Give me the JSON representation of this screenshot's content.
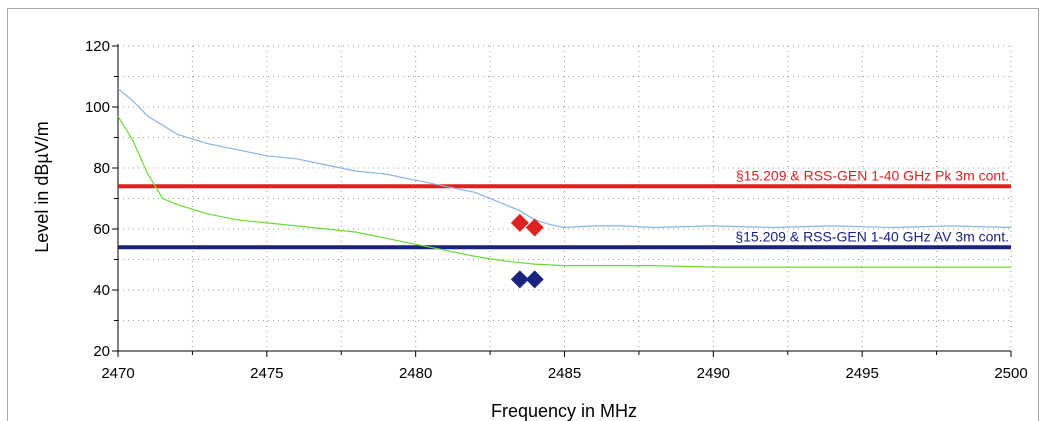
{
  "chart_data": {
    "type": "line",
    "xlabel": "Frequency in MHz",
    "ylabel": "Level in dBµV/m",
    "xlim": [
      2470,
      2500
    ],
    "ylim": [
      20,
      120
    ],
    "x_ticks": [
      2470,
      2475,
      2480,
      2485,
      2490,
      2495,
      2500
    ],
    "x_tick_labels": [
      "2470",
      "2475",
      "2480",
      "2485",
      "2490",
      "2495",
      "2500"
    ],
    "y_ticks": [
      20,
      40,
      60,
      80,
      100,
      120
    ],
    "y_tick_labels": [
      "20",
      "40",
      "60",
      "80",
      "100",
      "120"
    ],
    "grid": true,
    "series": [
      {
        "color": "#8ab4e6",
        "x": [
          2470.0,
          2470.5,
          2471.0,
          2471.5,
          2472.0,
          2473.0,
          2474.0,
          2475.0,
          2476.0,
          2477.0,
          2478.0,
          2479.0,
          2480.0,
          2481.0,
          2482.0,
          2483.0,
          2483.5,
          2484.0,
          2484.5,
          2485.0,
          2486.0,
          2487.0,
          2488.0,
          2490.0,
          2492.0,
          2494.0,
          2496.0,
          2498.0,
          2500.0
        ],
        "values": [
          106,
          102,
          97,
          94,
          91,
          88,
          86,
          84,
          83,
          81,
          79,
          78,
          76,
          74,
          72,
          68,
          66,
          63,
          61.5,
          60.5,
          61,
          61,
          60.5,
          61,
          60.5,
          61,
          60.5,
          61,
          60.5
        ]
      },
      {
        "color": "#66dd33",
        "x": [
          2470.0,
          2470.5,
          2471.0,
          2471.5,
          2472.0,
          2473.0,
          2474.0,
          2475.0,
          2476.0,
          2477.0,
          2478.0,
          2479.0,
          2480.0,
          2481.0,
          2482.0,
          2483.0,
          2484.0,
          2485.0,
          2486.0,
          2488.0,
          2490.0,
          2492.0,
          2494.0,
          2496.0,
          2497.0,
          2498.0,
          2499.0,
          2500.0
        ],
        "values": [
          97,
          89,
          78,
          70,
          68,
          65,
          63,
          62,
          61,
          60,
          59,
          57,
          55,
          53,
          51,
          49.5,
          48.5,
          48,
          48,
          48,
          47.5,
          47.5,
          47.5,
          47.5,
          47.5,
          47.5,
          47.5,
          47.5
        ]
      }
    ],
    "limits": [
      {
        "label": "§15.209 & RSS-GEN 1-40 GHz Pk 3m cont.",
        "value": 74,
        "color": "#dd2222"
      },
      {
        "label": "§15.209 & RSS-GEN 1-40 GHz AV 3m cont.",
        "value": 54,
        "color": "#1a237e"
      }
    ],
    "markers": [
      {
        "x": 2483.5,
        "y": 62,
        "color": "#dd2222"
      },
      {
        "x": 2484.0,
        "y": 60.5,
        "color": "#dd2222"
      },
      {
        "x": 2483.5,
        "y": 43.5,
        "color": "#1a237e"
      },
      {
        "x": 2484.0,
        "y": 43.5,
        "color": "#1a237e"
      }
    ]
  }
}
